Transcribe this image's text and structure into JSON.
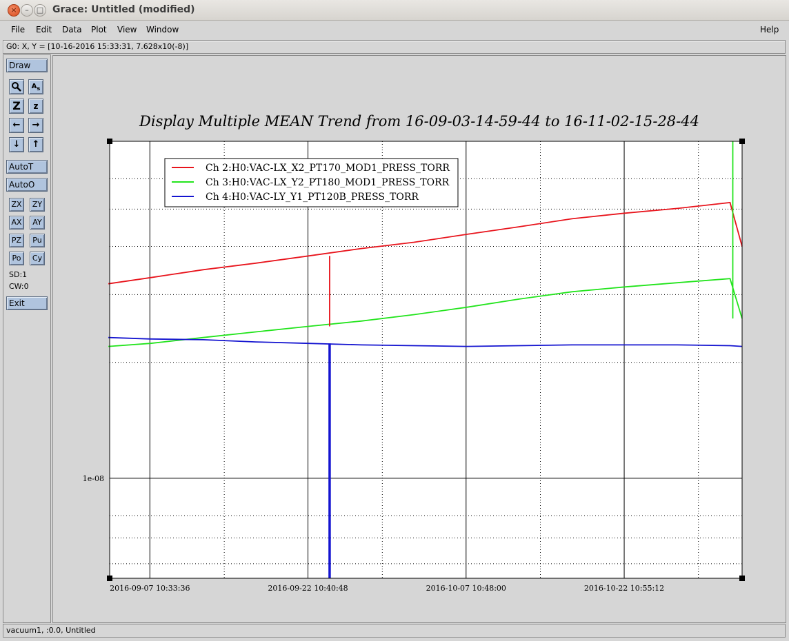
{
  "window": {
    "title": "Grace: Untitled (modified)"
  },
  "menubar": {
    "file": "File",
    "edit": "Edit",
    "data": "Data",
    "plot": "Plot",
    "view": "View",
    "window": "Window",
    "help": "Help"
  },
  "coord_readout": "G0: X, Y = [10-16-2016 15:33:31, 7.628x10(-8)]",
  "toolpanel": {
    "draw": "Draw",
    "autot": "AutoT",
    "autoo": "AutoO",
    "zx": "ZX",
    "zy": "ZY",
    "ax": "AX",
    "ay": "AY",
    "pz": "PZ",
    "pu": "Pu",
    "po": "Po",
    "cy": "Cy",
    "sd": "SD:1",
    "cw": "CW:0",
    "exit": "Exit"
  },
  "status": "vacuum1, :0.0, Untitled",
  "chart_data": {
    "type": "line",
    "title": "Display Multiple MEAN Trend from 16-09-03-14-59-44 to 16-11-02-15-28-44",
    "xlabel": "",
    "ylabel": "",
    "yscale": "log",
    "grid": true,
    "legend_position": "top-left",
    "x_tick_labels": [
      "2016-09-07 10:33:36",
      "2016-09-22 10:40:48",
      "2016-10-07 10:48:00",
      "2016-10-22 10:55:12"
    ],
    "y_tick_labels": [
      "1e-08"
    ],
    "x": [
      "2016-09-03",
      "2016-09-07",
      "2016-09-12",
      "2016-09-17",
      "2016-09-22",
      "2016-09-27",
      "2016-10-02",
      "2016-10-07",
      "2016-10-12",
      "2016-10-17",
      "2016-10-22",
      "2016-10-27",
      "2016-11-01",
      "2016-11-02"
    ],
    "series": [
      {
        "name": "Ch 2:H0:VAC-LX_X2_PT170_MOD1_PRESS_TORR",
        "color": "#e8141c",
        "values": [
          3.2e-08,
          3.32e-08,
          3.48e-08,
          3.62e-08,
          3.78e-08,
          3.95e-08,
          4.1e-08,
          4.3e-08,
          4.5e-08,
          4.72e-08,
          4.88e-08,
          5.02e-08,
          5.2e-08,
          4e-08
        ]
      },
      {
        "name": "Ch 3:H0:VAC-LX_Y2_PT180_MOD1_PRESS_TORR",
        "color": "#22e41c",
        "values": [
          2.2e-08,
          2.24e-08,
          2.32e-08,
          2.4e-08,
          2.48e-08,
          2.56e-08,
          2.66e-08,
          2.78e-08,
          2.92e-08,
          3.05e-08,
          3.14e-08,
          3.22e-08,
          3.3e-08,
          2.6e-08
        ]
      },
      {
        "name": "Ch 4:H0:VAC-LY_Y1_PT120B_PRESS_TORR",
        "color": "#1414d0",
        "values": [
          2.32e-08,
          2.3e-08,
          2.29e-08,
          2.26e-08,
          2.24e-08,
          2.22e-08,
          2.21e-08,
          2.2e-08,
          2.21e-08,
          2.22e-08,
          2.22e-08,
          2.22e-08,
          2.21e-08,
          2.2e-08
        ]
      }
    ]
  }
}
